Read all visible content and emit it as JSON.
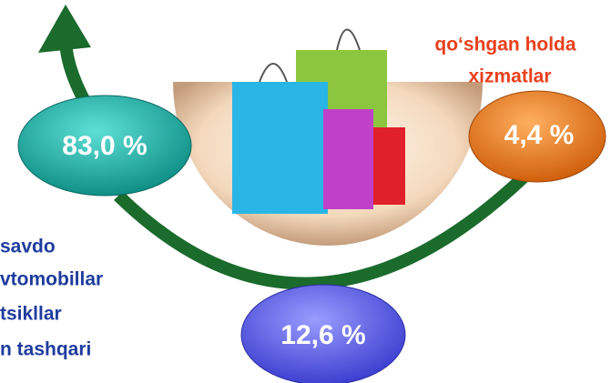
{
  "labels": {
    "right_top": [
      "qo‘shgan holda",
      "xizmatlar"
    ],
    "left": [
      "savdo",
      "vtomobillar",
      "tsikllar",
      "n tashqari"
    ]
  },
  "shares": {
    "left": "83,0 %",
    "right": "4,4 %",
    "bottom": "12,6 %"
  }
}
